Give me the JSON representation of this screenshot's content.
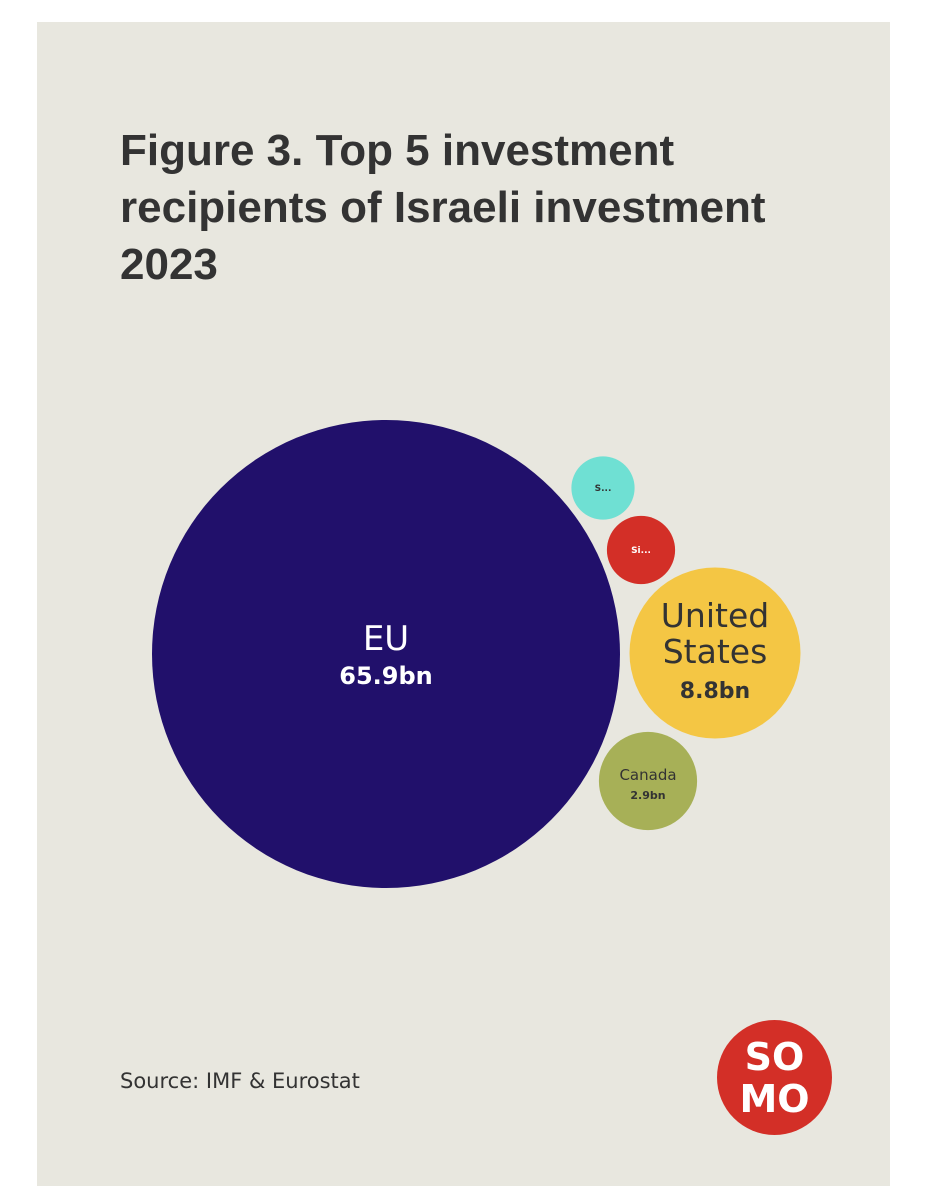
{
  "title": "Figure 3. Top 5 investment recipients of Israeli investment 2023",
  "source": "Source: IMF & Eurostat",
  "logo": {
    "line1": "SO",
    "line2": "MO",
    "color": "#d32f27"
  },
  "chart_data": {
    "type": "bubble",
    "title": "Figure 3. Top 5 investment recipients of Israeli investment 2023",
    "unit": "bn",
    "series": [
      {
        "name": "EU",
        "label": "EU",
        "value": 65.9,
        "display_value": "65.9bn",
        "color": "#21106b",
        "text_color": "#ffffff"
      },
      {
        "name": "United States",
        "label_lines": [
          "United",
          "States"
        ],
        "value": 8.8,
        "display_value": "8.8bn",
        "color": "#f4c644",
        "text_color": "#333333"
      },
      {
        "name": "Canada",
        "label": "Canada",
        "value": 2.9,
        "display_value": "2.9bn",
        "color": "#a7b057",
        "text_color": "#333333"
      },
      {
        "name": "Si...",
        "label": "Si...",
        "value": 1.4,
        "color": "#d32f27",
        "text_color": "#ffffff"
      },
      {
        "name": "S...",
        "label": "S...",
        "value": 1.2,
        "color": "#6fe0d3",
        "text_color": "#333333"
      }
    ]
  }
}
